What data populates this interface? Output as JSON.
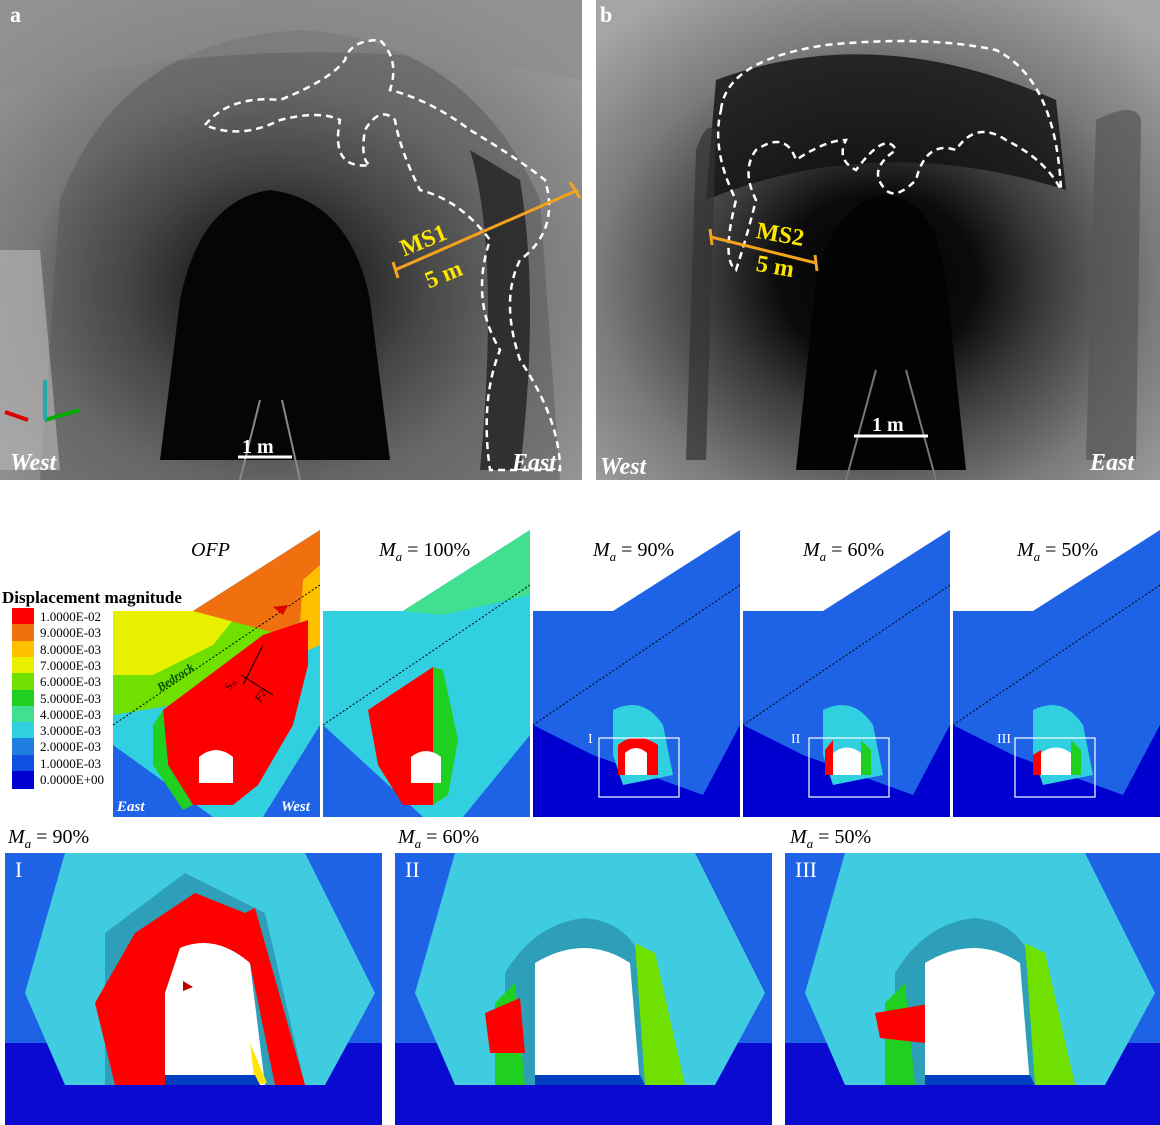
{
  "photos": {
    "a": {
      "panel_label": "a",
      "west": "West",
      "east": "East",
      "scale": "1 m",
      "section": "MS1",
      "section_length": "5 m"
    },
    "b": {
      "panel_label": "b",
      "west": "West",
      "east": "East",
      "scale": "1 m",
      "section": "MS2",
      "section_length": "5 m"
    }
  },
  "legend": {
    "title": "Displacement magnitude",
    "entries": [
      {
        "label": "1.0000E-02",
        "color": "#ff0000"
      },
      {
        "label": "9.0000E-03",
        "color": "#f07010"
      },
      {
        "label": "8.0000E-03",
        "color": "#ffc000"
      },
      {
        "label": "7.0000E-03",
        "color": "#e8f000"
      },
      {
        "label": "6.0000E-03",
        "color": "#70e000"
      },
      {
        "label": "5.0000E-03",
        "color": "#20d020"
      },
      {
        "label": "4.0000E-03",
        "color": "#40e090"
      },
      {
        "label": "3.0000E-03",
        "color": "#30d0e0"
      },
      {
        "label": "2.0000E-03",
        "color": "#1e7fe0"
      },
      {
        "label": "1.0000E-03",
        "color": "#1050e0"
      },
      {
        "label": "0.0000E+00",
        "color": "#0000d0"
      }
    ]
  },
  "sims": {
    "ofp": {
      "title": "OFP",
      "bedrock": "Bedrock",
      "east": "East",
      "west": "West",
      "sn": "S",
      "sn_sub": "n",
      "f2": "F2"
    },
    "m100": {
      "prefix": "M",
      "sub": "a",
      "value": " = 100%"
    },
    "m90": {
      "prefix": "M",
      "sub": "a",
      "value": " = 90%",
      "box": "I"
    },
    "m60": {
      "prefix": "M",
      "sub": "a",
      "value": " = 60%",
      "box": "II"
    },
    "m50": {
      "prefix": "M",
      "sub": "a",
      "value": " = 50%",
      "box": "III"
    }
  },
  "zooms": {
    "z1": {
      "prefix": "M",
      "sub": "a",
      "value": " = 90%",
      "label": "I"
    },
    "z2": {
      "prefix": "M",
      "sub": "a",
      "value": " = 60%",
      "label": "II"
    },
    "z3": {
      "prefix": "M",
      "sub": "a",
      "value": " = 50%",
      "label": "III"
    }
  },
  "colors": {
    "deep_blue": "#0a1fd8",
    "mid_blue": "#1e62e6",
    "cyan": "#40cce0",
    "red": "#ff0000",
    "orange": "#f07010",
    "green": "#20d020"
  }
}
